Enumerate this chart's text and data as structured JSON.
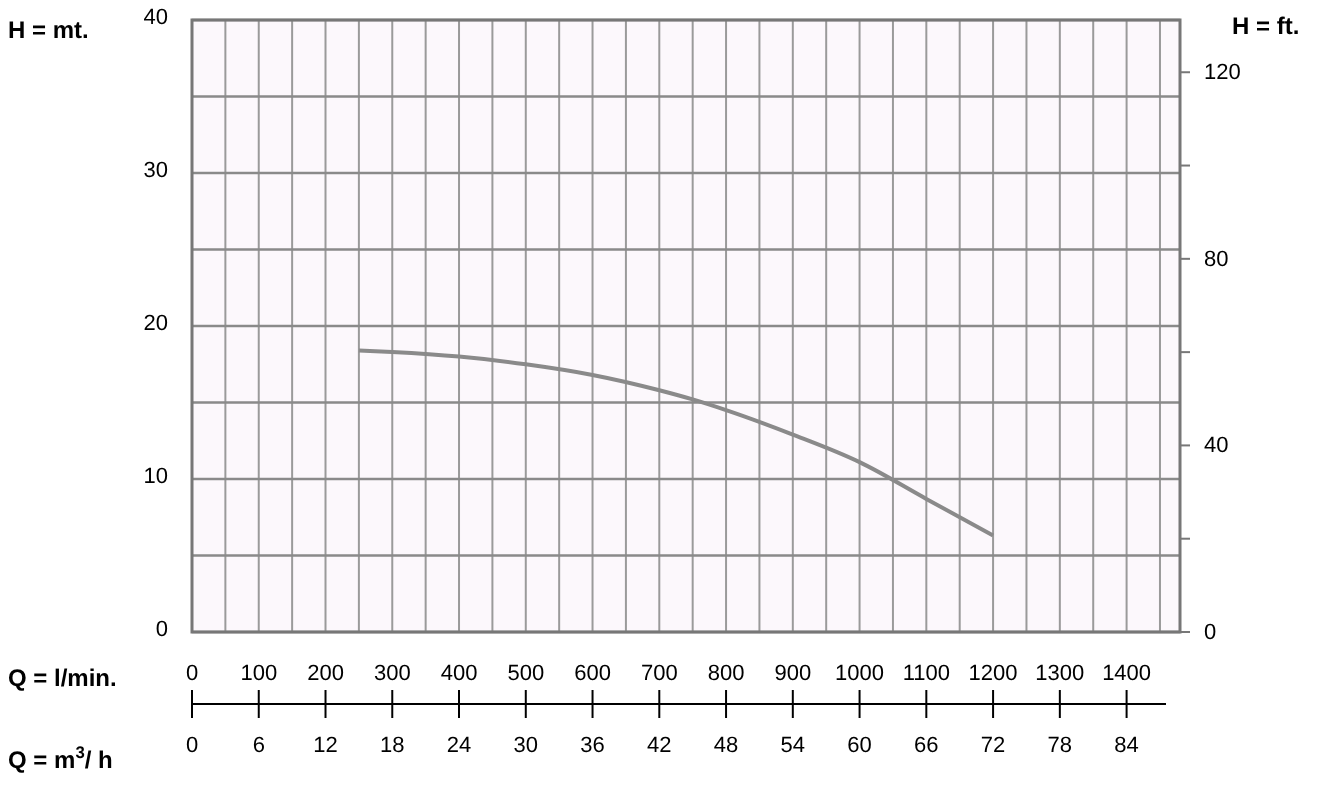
{
  "chart_data": {
    "type": "line",
    "xlabel": "Q = l/min.",
    "ylabel": "H = mt.",
    "y2label": "H = ft.",
    "x2label": "Q = m$^{3}$/ h",
    "x": [
      250,
      300,
      400,
      500,
      600,
      700,
      750,
      800,
      900,
      1000,
      1100,
      1200
    ],
    "series": [
      {
        "color": "#8a8a8a",
        "values": [
          18.4,
          18.3,
          18.0,
          17.5,
          16.8,
          15.8,
          15.2,
          14.5,
          12.9,
          11.1,
          8.7,
          6.3
        ]
      }
    ],
    "xlim": [
      0,
      1480
    ],
    "xticks": [
      0,
      100,
      200,
      300,
      400,
      500,
      600,
      700,
      800,
      900,
      1000,
      1100,
      1200,
      1300,
      1400
    ],
    "x2lim": [
      0,
      88.8
    ],
    "x2ticks": [
      0,
      6,
      12,
      18,
      24,
      30,
      36,
      42,
      48,
      54,
      60,
      66,
      72,
      78,
      84
    ],
    "ylim": [
      0,
      40
    ],
    "yticks": [
      0,
      10,
      20,
      30,
      40
    ],
    "y2lim": [
      0,
      131.2
    ],
    "y2ticks": [
      0,
      {
        "value": 20,
        "label": null
      },
      40,
      {
        "value": 60,
        "label": null
      },
      80,
      {
        "value": 100,
        "label": null
      },
      120
    ],
    "grid": true,
    "marker": "none",
    "line_style": "solid"
  }
}
